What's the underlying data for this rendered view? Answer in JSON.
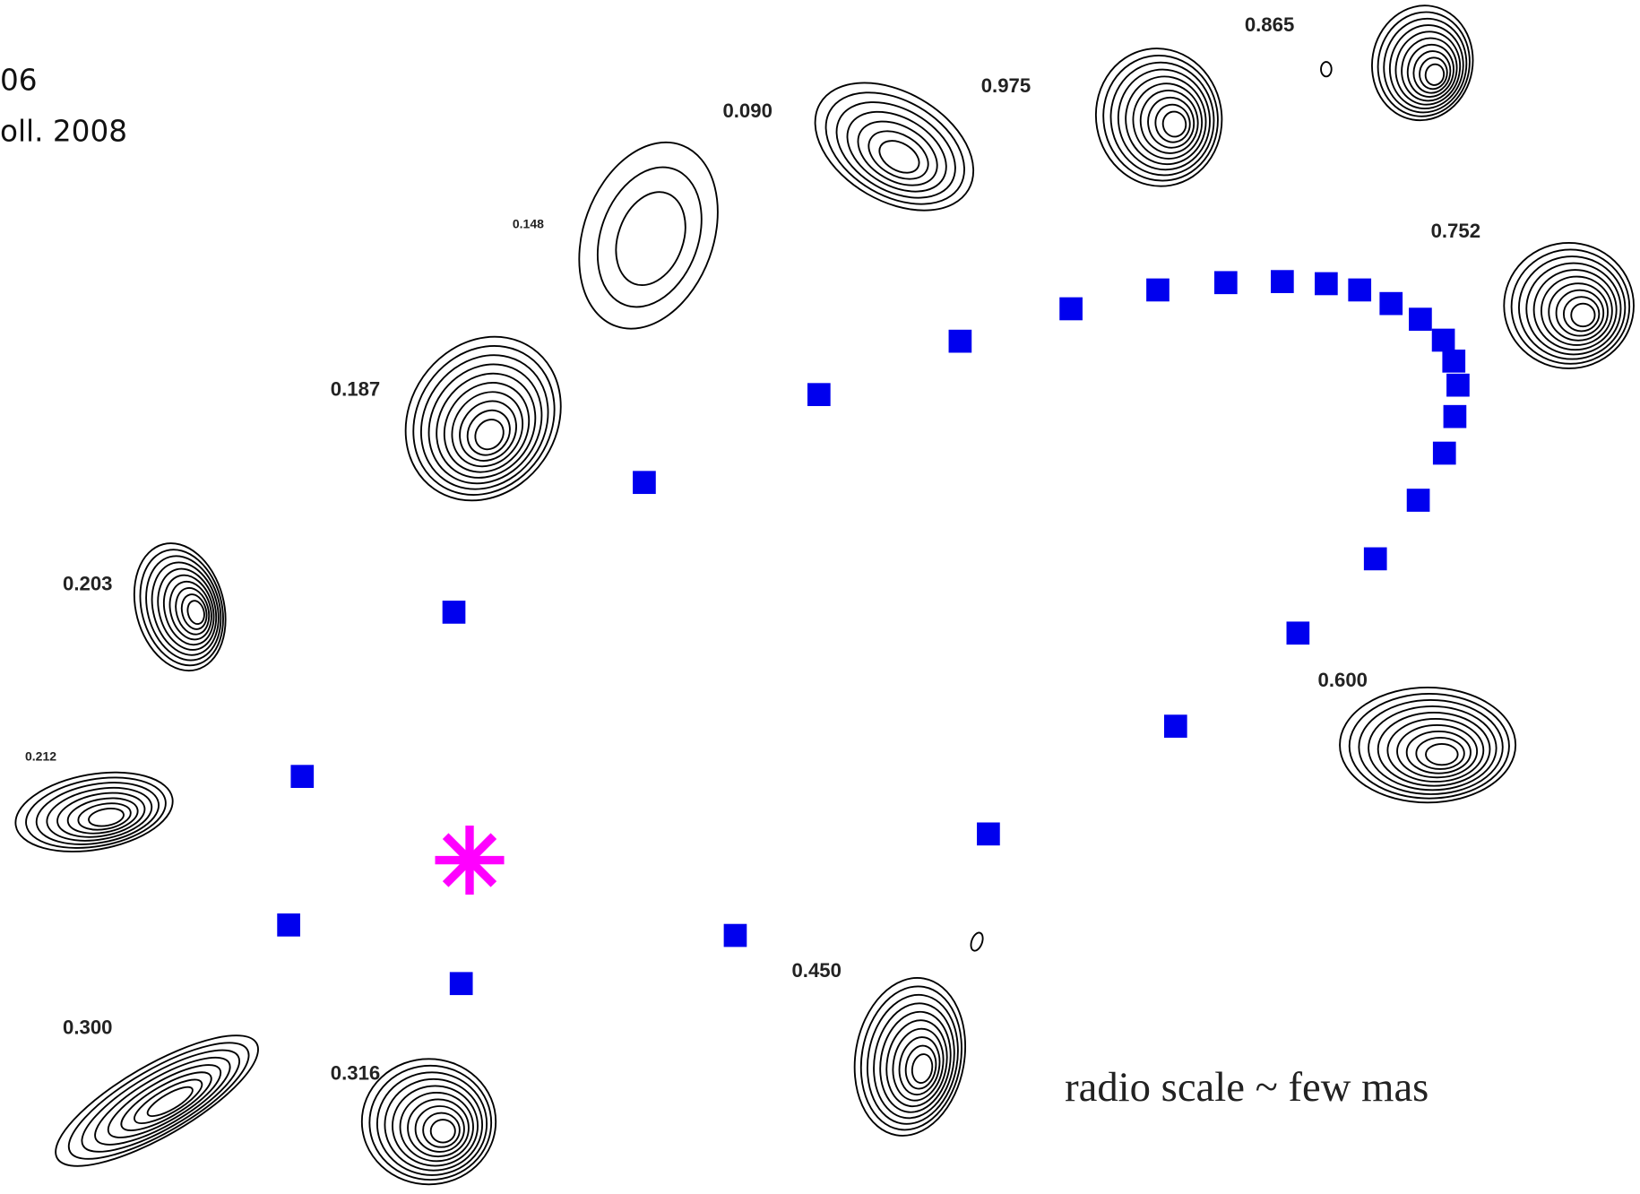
{
  "caption": {
    "lines": [
      "06",
      "oll. 2008"
    ]
  },
  "phases": [
    {
      "label": "0.865"
    },
    {
      "label": "0.975"
    },
    {
      "label": "0.090"
    },
    {
      "label": "0.148"
    },
    {
      "label": "0.752"
    },
    {
      "label": "0.187"
    },
    {
      "label": "0.203"
    },
    {
      "label": "0.600"
    },
    {
      "label": "0.212"
    },
    {
      "label": "0.450"
    },
    {
      "label": "0.300"
    },
    {
      "label": "0.316"
    }
  ],
  "scale_note": "radio scale ~ few mas"
}
